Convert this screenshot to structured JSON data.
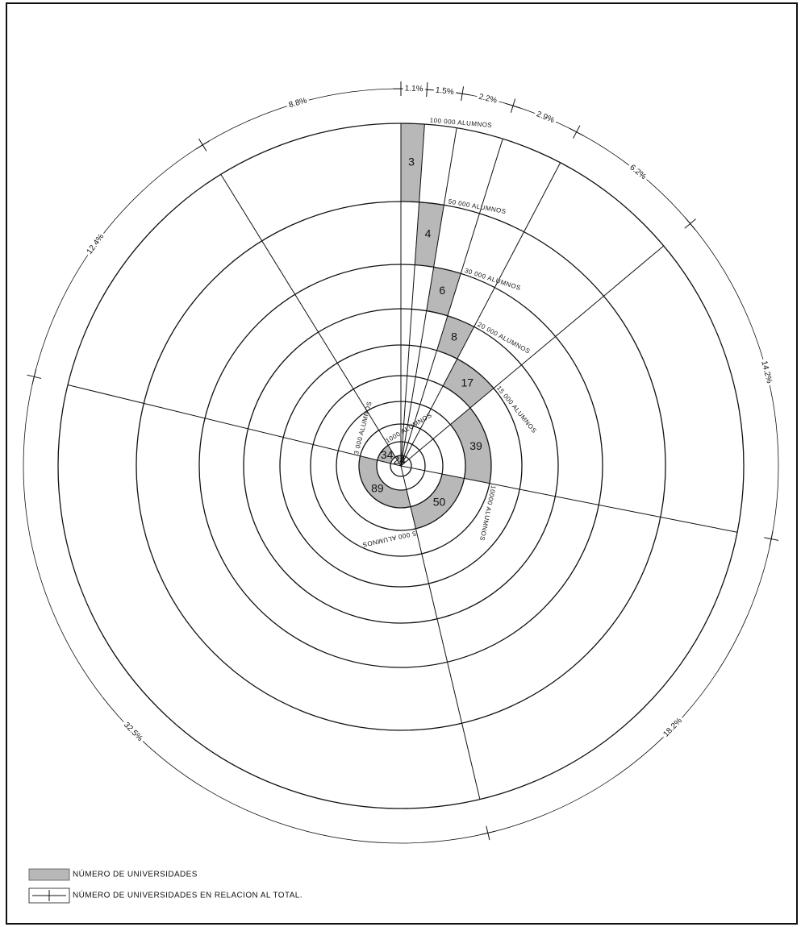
{
  "chart_data": {
    "type": "polar-area",
    "series": [
      {
        "name": "NÚMERO DE UNIVERSIDADES",
        "color": "#b8b8b8",
        "values": [
          3,
          4,
          6,
          8,
          17,
          39,
          50,
          89,
          34,
          24
        ]
      },
      {
        "name": "NÚMERO DE UNIVERSIDADES EN RELACION AL TOTAL.",
        "values": [
          1.1,
          1.5,
          2.2,
          2.9,
          6.2,
          14.2,
          18.2,
          32.5,
          12.4,
          8.8
        ],
        "value_labels": [
          "1.1%",
          "1.5%",
          "2.2%",
          "2.9%",
          "6.2%",
          "14.2%",
          "18.2%",
          "32.5%",
          "12.4%",
          "8.8%"
        ]
      }
    ],
    "rings": [
      "100 000 ALUMNOS",
      "50 000 ALUMNOS",
      "30 000 ALUMNOS",
      "20 000 ALUMNOS",
      "15 000 ALUMNOS",
      "10000 ALUMNOS",
      "5 000 ALUMNOS",
      "3 000 ALUMNOS",
      "1000 ALUMNOS"
    ]
  }
}
